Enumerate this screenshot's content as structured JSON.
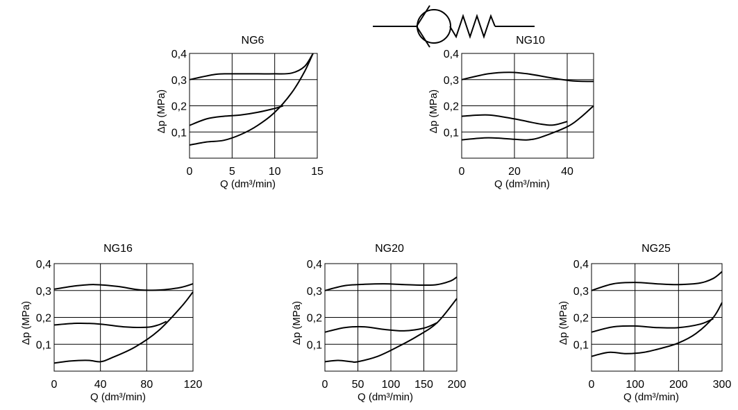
{
  "chart_data": [
    {
      "type": "line",
      "title": "NG6",
      "xlabel": "Q (dm³/min)",
      "ylabel": "Δp (MPa)",
      "xlim": [
        0,
        15
      ],
      "ylim": [
        0,
        0.4
      ],
      "xticks": [
        0,
        5,
        10,
        15
      ],
      "yticks": [
        0.1,
        0.2,
        0.3,
        0.4
      ],
      "ytick_labels": [
        "0,1",
        "0,2",
        "0,3",
        "0,4"
      ],
      "grid": true,
      "series": [
        {
          "x": [
            0,
            3,
            5,
            8,
            10,
            12,
            13.5,
            14.5
          ],
          "values": [
            0.3,
            0.32,
            0.322,
            0.322,
            0.322,
            0.325,
            0.35,
            0.4
          ]
        },
        {
          "x": [
            0,
            2,
            4,
            6,
            8,
            10,
            11
          ],
          "values": [
            0.125,
            0.15,
            0.16,
            0.165,
            0.175,
            0.19,
            0.2
          ]
        },
        {
          "x": [
            0,
            2,
            4,
            6,
            8,
            10,
            12,
            13.5,
            14.5
          ],
          "values": [
            0.05,
            0.062,
            0.068,
            0.09,
            0.125,
            0.175,
            0.25,
            0.33,
            0.4
          ]
        }
      ]
    },
    {
      "type": "line",
      "title": "NG10",
      "xlabel": "Q (dm³/min)",
      "ylabel": "Δp (MPa)",
      "xlim": [
        0,
        50
      ],
      "ylim": [
        0,
        0.4
      ],
      "xticks": [
        0,
        20,
        40
      ],
      "yticks": [
        0.1,
        0.2,
        0.3,
        0.4
      ],
      "ytick_labels": [
        "0,1",
        "0,2",
        "0,3",
        "0,4"
      ],
      "grid": true,
      "series": [
        {
          "x": [
            0,
            10,
            18,
            25,
            35,
            42,
            50
          ],
          "values": [
            0.3,
            0.322,
            0.328,
            0.322,
            0.305,
            0.295,
            0.293
          ]
        },
        {
          "x": [
            0,
            10,
            20,
            30,
            35,
            40
          ],
          "values": [
            0.16,
            0.165,
            0.15,
            0.13,
            0.127,
            0.14
          ]
        },
        {
          "x": [
            0,
            10,
            20,
            25,
            30,
            40,
            45,
            50
          ],
          "values": [
            0.07,
            0.078,
            0.072,
            0.07,
            0.08,
            0.12,
            0.155,
            0.2
          ]
        }
      ]
    },
    {
      "type": "line",
      "title": "NG16",
      "xlabel": "Q (dm³/min)",
      "ylabel": "Δp (MPa)",
      "xlim": [
        0,
        120
      ],
      "ylim": [
        0,
        0.4
      ],
      "xticks": [
        0,
        40,
        80,
        120
      ],
      "yticks": [
        0.1,
        0.2,
        0.3,
        0.4
      ],
      "ytick_labels": [
        "0,1",
        "0,2",
        "0,3",
        "0,4"
      ],
      "grid": true,
      "series": [
        {
          "x": [
            0,
            20,
            35,
            55,
            75,
            95,
            110,
            120
          ],
          "values": [
            0.305,
            0.318,
            0.322,
            0.315,
            0.302,
            0.303,
            0.312,
            0.325
          ]
        },
        {
          "x": [
            0,
            20,
            40,
            60,
            80,
            90,
            97
          ],
          "values": [
            0.172,
            0.178,
            0.175,
            0.165,
            0.163,
            0.172,
            0.185
          ]
        },
        {
          "x": [
            0,
            15,
            30,
            40,
            50,
            70,
            90,
            110,
            120
          ],
          "values": [
            0.03,
            0.038,
            0.04,
            0.035,
            0.05,
            0.09,
            0.15,
            0.24,
            0.295
          ]
        }
      ]
    },
    {
      "type": "line",
      "title": "NG20",
      "xlabel": "Q (dm³/min)",
      "ylabel": "Δp (MPa)",
      "xlim": [
        0,
        200
      ],
      "ylim": [
        0,
        0.4
      ],
      "xticks": [
        0,
        50,
        100,
        150,
        200
      ],
      "yticks": [
        0.1,
        0.2,
        0.3,
        0.4
      ],
      "ytick_labels": [
        "0,1",
        "0,2",
        "0,3",
        "0,4"
      ],
      "grid": true,
      "series": [
        {
          "x": [
            0,
            30,
            60,
            90,
            120,
            150,
            170,
            190,
            200
          ],
          "values": [
            0.3,
            0.318,
            0.323,
            0.325,
            0.322,
            0.32,
            0.322,
            0.335,
            0.35
          ]
        },
        {
          "x": [
            0,
            30,
            60,
            90,
            120,
            150,
            170
          ],
          "values": [
            0.145,
            0.162,
            0.165,
            0.155,
            0.15,
            0.16,
            0.18
          ]
        },
        {
          "x": [
            0,
            20,
            40,
            50,
            80,
            110,
            140,
            170,
            200
          ],
          "values": [
            0.035,
            0.04,
            0.035,
            0.035,
            0.055,
            0.09,
            0.13,
            0.18,
            0.27
          ]
        }
      ]
    },
    {
      "type": "line",
      "title": "NG25",
      "xlabel": "Q (dm³/min)",
      "ylabel": "Δp (MPa)",
      "xlim": [
        0,
        300
      ],
      "ylim": [
        0,
        0.4
      ],
      "xticks": [
        0,
        100,
        200,
        300
      ],
      "yticks": [
        0.1,
        0.2,
        0.3,
        0.4
      ],
      "ytick_labels": [
        "0,1",
        "0,2",
        "0,3",
        "0,4"
      ],
      "grid": true,
      "series": [
        {
          "x": [
            0,
            50,
            100,
            150,
            200,
            250,
            280,
            300
          ],
          "values": [
            0.3,
            0.325,
            0.33,
            0.325,
            0.322,
            0.328,
            0.345,
            0.37
          ]
        },
        {
          "x": [
            0,
            50,
            100,
            150,
            200,
            250,
            280
          ],
          "values": [
            0.145,
            0.165,
            0.168,
            0.162,
            0.162,
            0.175,
            0.195
          ]
        },
        {
          "x": [
            0,
            40,
            80,
            120,
            160,
            200,
            240,
            280,
            300
          ],
          "values": [
            0.055,
            0.07,
            0.065,
            0.07,
            0.085,
            0.105,
            0.14,
            0.2,
            0.255
          ]
        }
      ]
    }
  ],
  "symbol": {
    "icon": "check-valve-symbol-icon"
  }
}
